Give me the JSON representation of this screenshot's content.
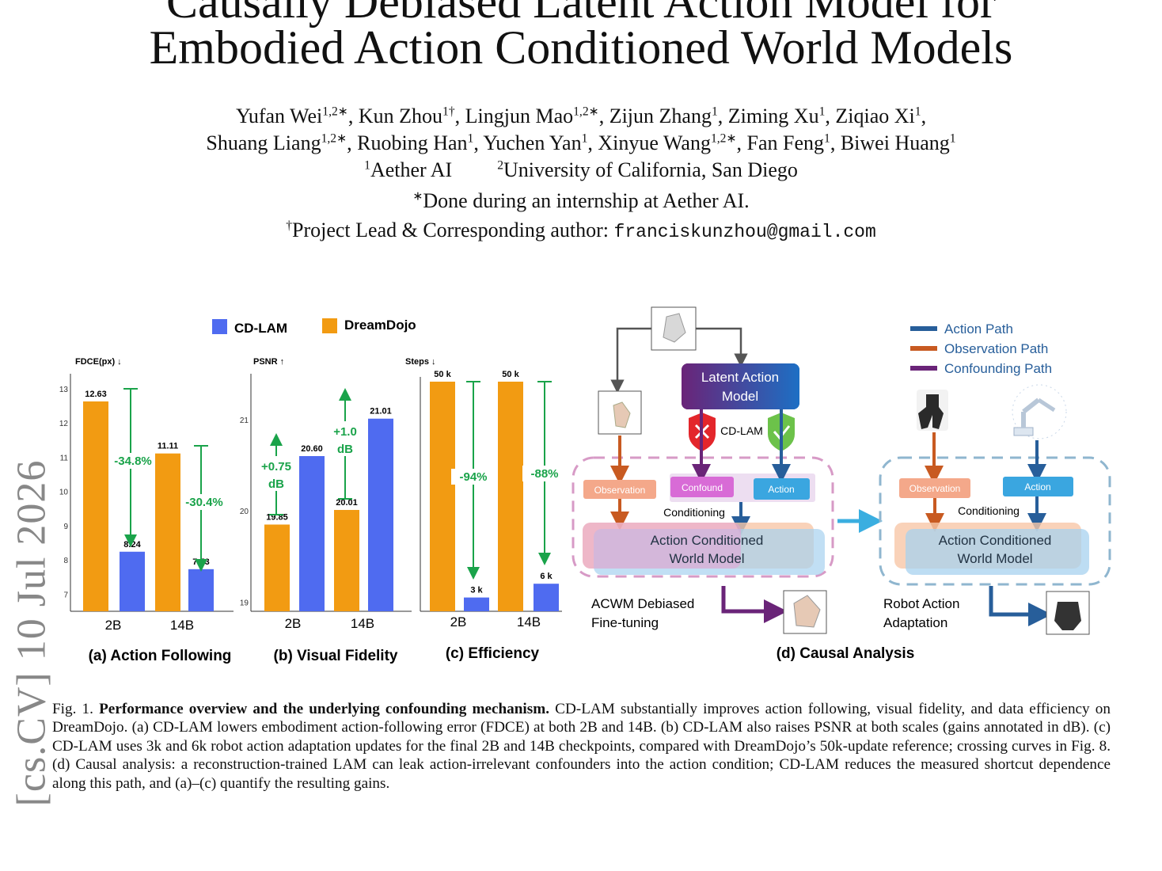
{
  "paper": {
    "title_line1": "Causally Debiased Latent Action Model for",
    "title_line2": "Embodied Action Conditioned World Models",
    "arxiv_side": "[cs.CV]  10 Jul 2026",
    "authors_line1": [
      {
        "name": "Yufan Wei",
        "sup": "1,2∗"
      },
      {
        "name": "Kun Zhou",
        "sup": "1†"
      },
      {
        "name": "Lingjun Mao",
        "sup": "1,2∗"
      },
      {
        "name": "Zijun Zhang",
        "sup": "1"
      },
      {
        "name": "Ziming Xu",
        "sup": "1"
      },
      {
        "name": "Ziqiao Xi",
        "sup": "1"
      }
    ],
    "authors_line2": [
      {
        "name": "Shuang Liang",
        "sup": "1,2∗"
      },
      {
        "name": "Ruobing Han",
        "sup": "1"
      },
      {
        "name": "Yuchen Yan",
        "sup": "1"
      },
      {
        "name": "Xinyue Wang",
        "sup": "1,2∗"
      },
      {
        "name": "Fan Feng",
        "sup": "1"
      },
      {
        "name": "Biwei Huang",
        "sup": "1"
      }
    ],
    "affil1_sup": "1",
    "affil1": "Aether AI",
    "affil2_sup": "2",
    "affil2": "University of California, San Diego",
    "note1_sup": "∗",
    "note1": "Done during an internship at Aether AI.",
    "note2_sup": "†",
    "note2": "Project Lead & Corresponding author: ",
    "email": "franciskunzhou@gmail.com"
  },
  "legend": {
    "cdlam": "CD-LAM",
    "dreamdojo": "DreamDojo",
    "cdlam_color": "#4f6bf0",
    "dreamdojo_color": "#f29b12"
  },
  "chart_data": [
    {
      "type": "bar",
      "title": "(a) Action Following",
      "ylabel": "FDCE(px) ↓",
      "categories": [
        "2B",
        "14B"
      ],
      "ylim": [
        6.5,
        13.3
      ],
      "yticks": [
        7,
        8,
        9,
        10,
        11,
        12,
        13
      ],
      "series": [
        {
          "name": "DreamDojo",
          "values": [
            12.63,
            11.11
          ]
        },
        {
          "name": "CD-LAM",
          "values": [
            8.24,
            7.73
          ]
        }
      ],
      "value_labels": {
        "DreamDojo": [
          "12.63",
          "11.11"
        ],
        "CD-LAM": [
          "8.24",
          "7.73"
        ]
      },
      "annotations": [
        "-34.8%",
        "-30.4%"
      ]
    },
    {
      "type": "bar",
      "title": "(b) Visual Fidelity",
      "ylabel": "PSNR ↑",
      "categories": [
        "2B",
        "14B"
      ],
      "ylim": [
        18.9,
        21.45
      ],
      "yticks": [
        19,
        20,
        21
      ],
      "series": [
        {
          "name": "DreamDojo",
          "values": [
            19.85,
            20.01
          ]
        },
        {
          "name": "CD-LAM",
          "values": [
            20.6,
            21.01
          ]
        }
      ],
      "value_labels": {
        "DreamDojo": [
          "19.85",
          "20.01"
        ],
        "CD-LAM": [
          "20.60",
          "21.01"
        ]
      },
      "annotations": [
        "+0.75 dB",
        "+1.0 dB"
      ]
    },
    {
      "type": "bar",
      "title": "(c) Efficiency",
      "ylabel": "Steps ↓",
      "categories": [
        "2B",
        "14B"
      ],
      "ylim": [
        0,
        50
      ],
      "series": [
        {
          "name": "DreamDojo",
          "values": [
            50,
            50
          ]
        },
        {
          "name": "CD-LAM",
          "values": [
            3,
            6
          ]
        }
      ],
      "value_labels": {
        "DreamDojo": [
          "50 k",
          "50 k"
        ],
        "CD-LAM": [
          "3 k",
          "6 k"
        ]
      },
      "annotations": [
        "-94%",
        "-88%"
      ]
    }
  ],
  "diagram": {
    "title": "(d) Causal Analysis",
    "legend": [
      {
        "label": "Action Path",
        "color": "#275e9a"
      },
      {
        "label": "Observation Path",
        "color": "#c85a21"
      },
      {
        "label": "Confounding Path",
        "color": "#6a2478"
      }
    ],
    "lam_line1": "Latent Action",
    "lam_line2": "Model",
    "cdlam_label": "CD-LAM",
    "observation": "Observation",
    "confound": "Confound",
    "action": "Action",
    "conditioning": "Conditioning",
    "acwm_line1": "Action Conditioned",
    "acwm_line2": "World Model",
    "left_caption_1": "ACWM Debiased",
    "left_caption_2": "Fine-tuning",
    "right_caption_1": "Robot Action",
    "right_caption_2": "Adaptation"
  },
  "caption": {
    "label": "Fig. 1. ",
    "bold": "Performance overview and the underlying confounding mechanism.",
    "text": " CD-LAM substantially improves action following, visual fidelity, and data efficiency on DreamDojo. (a) CD-LAM lowers embodiment action-following error (FDCE) at both 2B and 14B. (b) CD-LAM also raises PSNR at both scales (gains annotated in dB). (c) CD-LAM uses 3k and 6k robot action adaptation updates for the final 2B and 14B checkpoints, compared with DreamDojo’s 50k-update reference; crossing curves in Fig. 8. (d) Causal analysis: a reconstruction-trained LAM can leak action-irrelevant confounders into the action condition; CD-LAM reduces the measured shortcut dependence along this path, and (a)–(c) quantify the resulting gains."
  }
}
